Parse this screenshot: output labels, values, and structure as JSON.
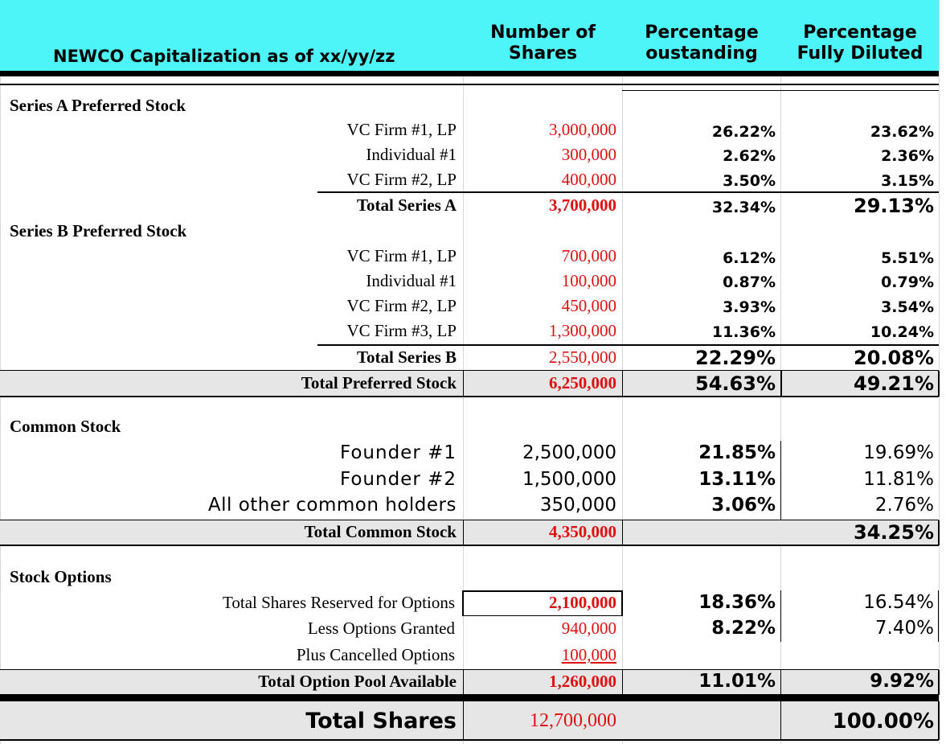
{
  "header": {
    "title": "NEWCO Capitalization as of xx/yy/zz",
    "col_shares": [
      "Number of",
      "Shares"
    ],
    "col_pct_out": [
      "Percentage",
      "oustanding"
    ],
    "col_pct_fd": [
      "Percentage",
      "Fully Diluted"
    ]
  },
  "series_a": {
    "heading": "Series A Preferred Stock",
    "rows": [
      {
        "name": "VC Firm #1, LP",
        "shares": "3,000,000",
        "pct_out": "26.22%",
        "pct_fd": "23.62%"
      },
      {
        "name": "Individual #1",
        "shares": "300,000",
        "pct_out": "2.62%",
        "pct_fd": "2.36%"
      },
      {
        "name": "VC Firm #2, LP",
        "shares": "400,000",
        "pct_out": "3.50%",
        "pct_fd": "3.15%"
      }
    ],
    "total": {
      "name": "Total Series A",
      "shares": "3,700,000",
      "pct_out": "32.34%",
      "pct_fd": "29.13%"
    }
  },
  "series_b": {
    "heading": "Series B Preferred Stock",
    "rows": [
      {
        "name": "VC Firm #1, LP",
        "shares": "700,000",
        "pct_out": "6.12%",
        "pct_fd": "5.51%"
      },
      {
        "name": "Individual #1",
        "shares": "100,000",
        "pct_out": "0.87%",
        "pct_fd": "0.79%"
      },
      {
        "name": "VC Firm #2, LP",
        "shares": "450,000",
        "pct_out": "3.93%",
        "pct_fd": "3.54%"
      },
      {
        "name": "VC Firm #3, LP",
        "shares": "1,300,000",
        "pct_out": "11.36%",
        "pct_fd": "10.24%"
      }
    ],
    "total": {
      "name": "Total Series B",
      "shares": "2,550,000",
      "pct_out": "22.29%",
      "pct_fd": "20.08%"
    }
  },
  "total_preferred": {
    "name": "Total Preferred Stock",
    "shares": "6,250,000",
    "pct_out": "54.63%",
    "pct_fd": "49.21%"
  },
  "common": {
    "heading": "Common Stock",
    "rows": [
      {
        "name": "Founder #1",
        "shares": "2,500,000",
        "pct_out": "21.85%",
        "pct_fd": "19.69%"
      },
      {
        "name": "Founder #2",
        "shares": "1,500,000",
        "pct_out": "13.11%",
        "pct_fd": "11.81%"
      },
      {
        "name": "All other common holders",
        "shares": "350,000",
        "pct_out": "3.06%",
        "pct_fd": "2.76%"
      }
    ],
    "total": {
      "name": "Total Common Stock",
      "shares": "4,350,000",
      "pct_fd": "34.25%"
    }
  },
  "options": {
    "heading": "Stock Options",
    "rows": [
      {
        "name": "Total Shares Reserved for Options",
        "shares": "2,100,000",
        "pct_out": "18.36%",
        "pct_fd": "16.54%"
      },
      {
        "name": "Less Options Granted",
        "shares": "940,000",
        "pct_out": "8.22%",
        "pct_fd": "7.40%"
      },
      {
        "name": "Plus Cancelled Options",
        "shares": "100,000"
      }
    ],
    "total": {
      "name": "Total Option Pool Available",
      "shares": "1,260,000",
      "pct_out": "11.01%",
      "pct_fd": "9.92%"
    }
  },
  "grand_total": {
    "name": "Total Shares",
    "shares": "12,700,000",
    "pct_fd": "100.00%"
  },
  "colors": {
    "header_bg": "#4df4f8",
    "red_text": "#e01010",
    "total_bg": "#e6e6e6"
  }
}
